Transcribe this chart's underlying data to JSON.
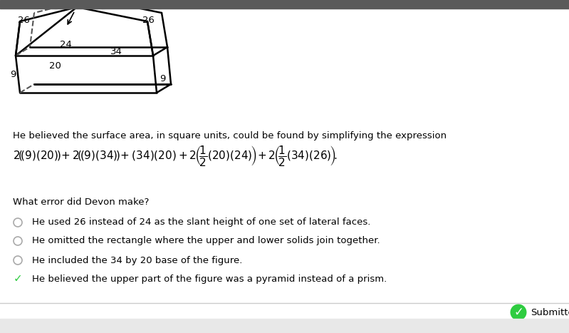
{
  "bg_color": "#ffffff",
  "top_bar_color": "#5a5a5a",
  "text_color": "#000000",
  "bottom_bar_color": "#e8e8e8",
  "figure_line_color": "#000000",
  "check_color": "#2ecc40",
  "intro_text": "He believed the surface area, in square units, could be found by simplifying the expression",
  "question_text": "What error did Devon make?",
  "options": [
    "He used 26 instead of 24 as the slant height of one set of lateral faces.",
    "He omitted the rectangle where the upper and lower solids join together.",
    "He included the 34 by 20 base of the figure.",
    "He believed the upper part of the figure was a pyramid instead of a prism."
  ],
  "correct_option": 3,
  "submitted_text": "Submitted",
  "labels": {
    "26_left": "26",
    "26_right": "26",
    "24": "24",
    "34": "34",
    "20": "20",
    "9_left": "9",
    "9_right": "9"
  }
}
